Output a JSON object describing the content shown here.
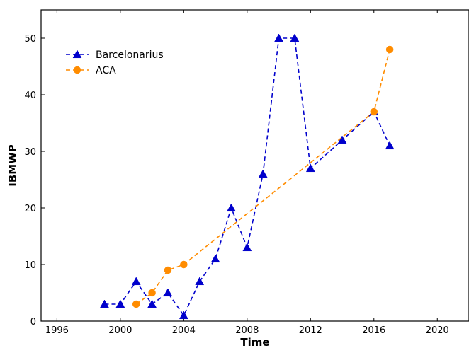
{
  "chart_data": {
    "type": "line",
    "xlabel": "Time",
    "ylabel": "IBMWP",
    "xlim": [
      1995,
      2022
    ],
    "ylim": [
      0,
      55
    ],
    "xticks": [
      1996,
      2000,
      2004,
      2008,
      2012,
      2016,
      2020
    ],
    "yticks": [
      0,
      10,
      20,
      30,
      40,
      50
    ],
    "grid": false,
    "legend_position": "top-left",
    "series": [
      {
        "name": "Barcelonarius",
        "color": "#0000cc",
        "marker": "triangle",
        "linestyle": "dashed",
        "x": [
          1999,
          2000,
          2001,
          2002,
          2003,
          2004,
          2005,
          2006,
          2007,
          2008,
          2009,
          2010,
          2011,
          2012,
          2014,
          2016,
          2017
        ],
        "y": [
          3,
          3,
          7,
          3,
          5,
          1,
          7,
          11,
          20,
          13,
          26,
          50,
          50,
          27,
          32,
          37,
          31
        ]
      },
      {
        "name": "ACA",
        "color": "#ff8c00",
        "marker": "circle",
        "linestyle": "dashed",
        "x": [
          2001,
          2002,
          2003,
          2004,
          2016,
          2017
        ],
        "y": [
          3,
          5,
          9,
          10,
          37,
          48
        ]
      }
    ]
  }
}
